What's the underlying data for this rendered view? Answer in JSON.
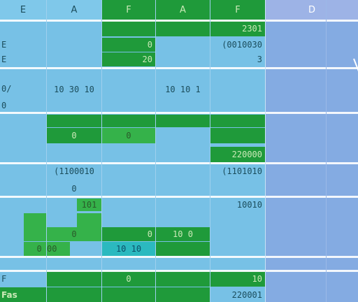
{
  "headers": [
    "E",
    "A",
    "F",
    "A",
    "F",
    "D"
  ],
  "rows": {
    "r1": {
      "label": "",
      "c5": "",
      "c4": "",
      "c3": "",
      "c6": "2301"
    },
    "r2": {
      "label": "E",
      "c3": "0",
      "c4": "",
      "c6": "(0010030"
    },
    "r3": {
      "label": "E",
      "c3": "20",
      "c6": "3"
    },
    "r4": {
      "label": "0/",
      "c2": "10 30 10",
      "c5": "10 10 1"
    },
    "r5": {
      "label": "0"
    },
    "r6": {
      "label": "",
      "c2": "0",
      "c4": "0"
    },
    "r7": {
      "label": "",
      "c6": "220000"
    },
    "r8": {
      "label": "",
      "c2": "(1100010",
      "c6": "(1101010"
    },
    "r9": {
      "label": "",
      "c2": "0"
    },
    "r10": {
      "label": "",
      "c2": "101",
      "c6": "10010"
    },
    "r11": {
      "label": "",
      "c2": "0",
      "c4": "0",
      "c5": "10 0"
    },
    "r12": {
      "label": "",
      "c2": "0 00",
      "c3": "10 10"
    },
    "r13": {
      "label": "F",
      "c2": "",
      "c3": "",
      "c4": "0",
      "c6": "10"
    },
    "r14": {
      "label": "Fas",
      "c6": "220001"
    }
  },
  "colors": {
    "blue": "#77c1e6",
    "green": "#1f9a3a",
    "teal": "#2bb9bf",
    "sidebar": "#84abe2"
  }
}
